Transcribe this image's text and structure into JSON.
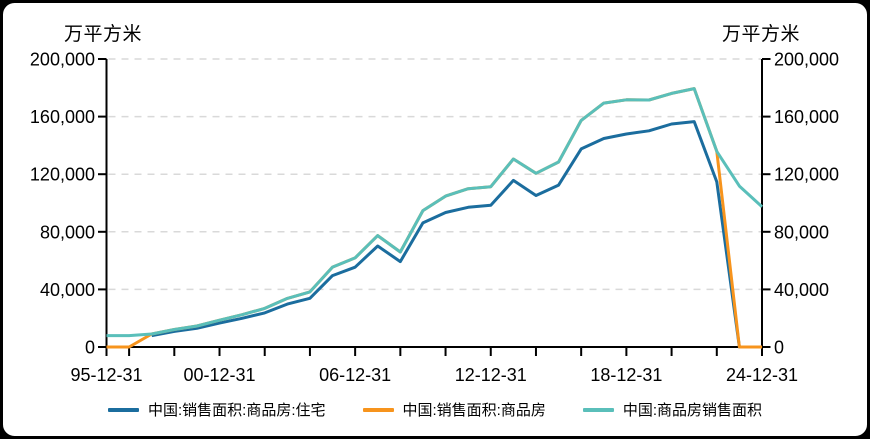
{
  "chart_data": {
    "type": "line",
    "unit_left": "万平方米",
    "unit_right": "万平方米",
    "ylim": [
      0,
      200000
    ],
    "y_ticks": [
      0,
      40000,
      80000,
      120000,
      160000,
      200000
    ],
    "y_tick_labels": [
      "0",
      "40,000",
      "80,000",
      "120,000",
      "160,000",
      "200,000"
    ],
    "x_years": [
      1995,
      1996,
      1997,
      1998,
      1999,
      2000,
      2001,
      2002,
      2003,
      2004,
      2005,
      2006,
      2007,
      2008,
      2009,
      2010,
      2011,
      2012,
      2013,
      2014,
      2015,
      2016,
      2017,
      2018,
      2019,
      2020,
      2021,
      2022,
      2023,
      2024
    ],
    "x_minor_tick_years": [
      1995,
      1996,
      1998,
      2000,
      2002,
      2004,
      2006,
      2008,
      2010,
      2012,
      2014,
      2016,
      2018,
      2020,
      2022,
      2024
    ],
    "x_axis_labels": [
      {
        "year": 1995,
        "label": "95-12-31"
      },
      {
        "year": 2000,
        "label": "00-12-31"
      },
      {
        "year": 2006,
        "label": "06-12-31"
      },
      {
        "year": 2012,
        "label": "12-12-31"
      },
      {
        "year": 2018,
        "label": "18-12-31"
      },
      {
        "year": 2024,
        "label": "24-12-31"
      }
    ],
    "grid": "horizontal-dashed",
    "grid_color": "#d9d9d9",
    "axis_color": "#000000",
    "legend_position": "bottom",
    "series": [
      {
        "id": "residential",
        "name": "中国:销售面积:商品房:住宅",
        "color": "#1b6d9e",
        "values": [
          null,
          null,
          7864,
          10827,
          12998,
          16570,
          19939,
          23702,
          29779,
          33820,
          49588,
          55423,
          70136,
          59280,
          86185,
          93376,
          97030,
          98468,
          115723,
          105182,
          112406,
          137540,
          144789,
          147929,
          150144,
          154878,
          156532,
          114631,
          0,
          0
        ]
      },
      {
        "id": "commodity",
        "name": "中国:销售面积:商品房",
        "color": "#f7941d",
        "values": [
          0,
          0,
          9010,
          12185,
          14557,
          18637,
          22412,
          26808,
          33718,
          38232,
          55486,
          61857,
          77355,
          65970,
          94755,
          104765,
          109946,
          111304,
          130551,
          120649,
          128495,
          157349,
          169408,
          171654,
          171558,
          176086,
          179433,
          135837,
          0,
          0
        ]
      },
      {
        "id": "commodity-total",
        "name": "中国:商品房销售面积",
        "color": "#5abfba",
        "values": [
          7906,
          7900,
          9010,
          12185,
          14557,
          18637,
          22412,
          26808,
          33718,
          38232,
          55486,
          61857,
          77355,
          65970,
          94755,
          104765,
          109946,
          111304,
          130551,
          120649,
          128495,
          157349,
          169408,
          171654,
          171558,
          176086,
          179433,
          135837,
          111735,
          97385
        ]
      }
    ]
  }
}
